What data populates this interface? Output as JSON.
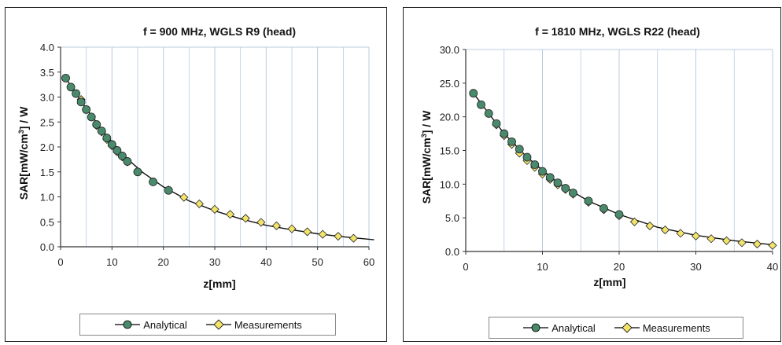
{
  "chart_data": [
    {
      "type": "line",
      "title": "f = 900 MHz, WGLS R9 (head)",
      "xlabel": "z[mm]",
      "ylabel": "SAR[mW/cm3] / W",
      "xlim": [
        0,
        60
      ],
      "ylim": [
        0.0,
        4.0
      ],
      "xticks": [
        "0",
        "10",
        "20",
        "30",
        "40",
        "50",
        "60"
      ],
      "yticks": [
        "0.0",
        "0.5",
        "1.0",
        "1.5",
        "2.0",
        "2.5",
        "3.0",
        "3.5",
        "4.0"
      ],
      "grid": "vertical",
      "legend_position": "bottom",
      "series": [
        {
          "name": "Analytical",
          "color": "#4a8a6c",
          "marker": "circle",
          "x": [
            1,
            2,
            3,
            4,
            5,
            6,
            7,
            8,
            9,
            10,
            11,
            12,
            13,
            15,
            18,
            21
          ],
          "y": [
            3.38,
            3.2,
            3.07,
            2.9,
            2.75,
            2.6,
            2.45,
            2.32,
            2.18,
            2.05,
            1.93,
            1.82,
            1.71,
            1.5,
            1.3,
            1.13
          ]
        },
        {
          "name": "Measurements",
          "color": "#f2e36a",
          "marker": "diamond",
          "x": [
            4,
            5,
            6,
            7,
            8,
            9,
            10,
            11,
            12,
            13,
            15,
            18,
            21,
            24,
            27,
            30,
            33,
            36,
            39,
            42,
            45,
            48,
            51,
            54,
            57
          ],
          "y": [
            2.95,
            2.75,
            2.6,
            2.43,
            2.3,
            2.15,
            2.02,
            1.9,
            1.8,
            1.7,
            1.5,
            1.3,
            1.14,
            0.99,
            0.86,
            0.75,
            0.65,
            0.57,
            0.49,
            0.42,
            0.36,
            0.3,
            0.25,
            0.21,
            0.17
          ]
        }
      ],
      "analytical_curve": {
        "x": [
          1,
          3,
          5,
          8,
          12,
          16,
          20,
          25,
          30,
          35,
          40,
          45,
          50,
          55,
          61
        ],
        "y": [
          3.38,
          3.07,
          2.77,
          2.35,
          1.85,
          1.49,
          1.2,
          0.92,
          0.72,
          0.56,
          0.43,
          0.34,
          0.26,
          0.2,
          0.14
        ]
      }
    },
    {
      "type": "line",
      "title": "f = 1810 MHz, WGLS R22 (head)",
      "xlabel": "z[mm]",
      "ylabel": "SAR[mW/cm3] / W",
      "xlim": [
        0,
        40
      ],
      "ylim": [
        0.0,
        30.0
      ],
      "xticks": [
        "0",
        "10",
        "20",
        "30",
        "40"
      ],
      "yticks": [
        "0.0",
        "5.0",
        "10.0",
        "15.0",
        "20.0",
        "25.0",
        "30.0"
      ],
      "grid": "vertical",
      "legend_position": "bottom",
      "series": [
        {
          "name": "Analytical",
          "color": "#4a8a6c",
          "marker": "circle",
          "x": [
            1,
            2,
            3,
            4,
            5,
            6,
            7,
            8,
            9,
            10,
            11,
            12,
            13,
            14,
            16,
            18,
            20
          ],
          "y": [
            23.5,
            21.8,
            20.5,
            19.0,
            17.5,
            16.3,
            15.2,
            14.0,
            12.9,
            11.9,
            11.0,
            10.2,
            9.4,
            8.7,
            7.5,
            6.4,
            5.5
          ]
        },
        {
          "name": "Measurements",
          "color": "#f2e36a",
          "marker": "diamond",
          "x": [
            4,
            5,
            6,
            7,
            8,
            9,
            10,
            11,
            12,
            13,
            14,
            16,
            18,
            20,
            22,
            24,
            26,
            28,
            30,
            32,
            34,
            36,
            38,
            40
          ],
          "y": [
            18.8,
            17.2,
            15.9,
            14.6,
            13.5,
            12.5,
            11.5,
            10.7,
            9.9,
            9.2,
            8.5,
            7.3,
            6.2,
            5.3,
            4.4,
            3.8,
            3.2,
            2.7,
            2.3,
            1.9,
            1.6,
            1.3,
            1.1,
            0.9
          ]
        }
      ],
      "analytical_curve": {
        "x": [
          1,
          3,
          5,
          8,
          12,
          16,
          20,
          25,
          30,
          35,
          40
        ],
        "y": [
          23.5,
          20.5,
          17.5,
          14.0,
          10.2,
          7.5,
          5.5,
          3.6,
          2.4,
          1.6,
          1.0
        ]
      }
    }
  ]
}
